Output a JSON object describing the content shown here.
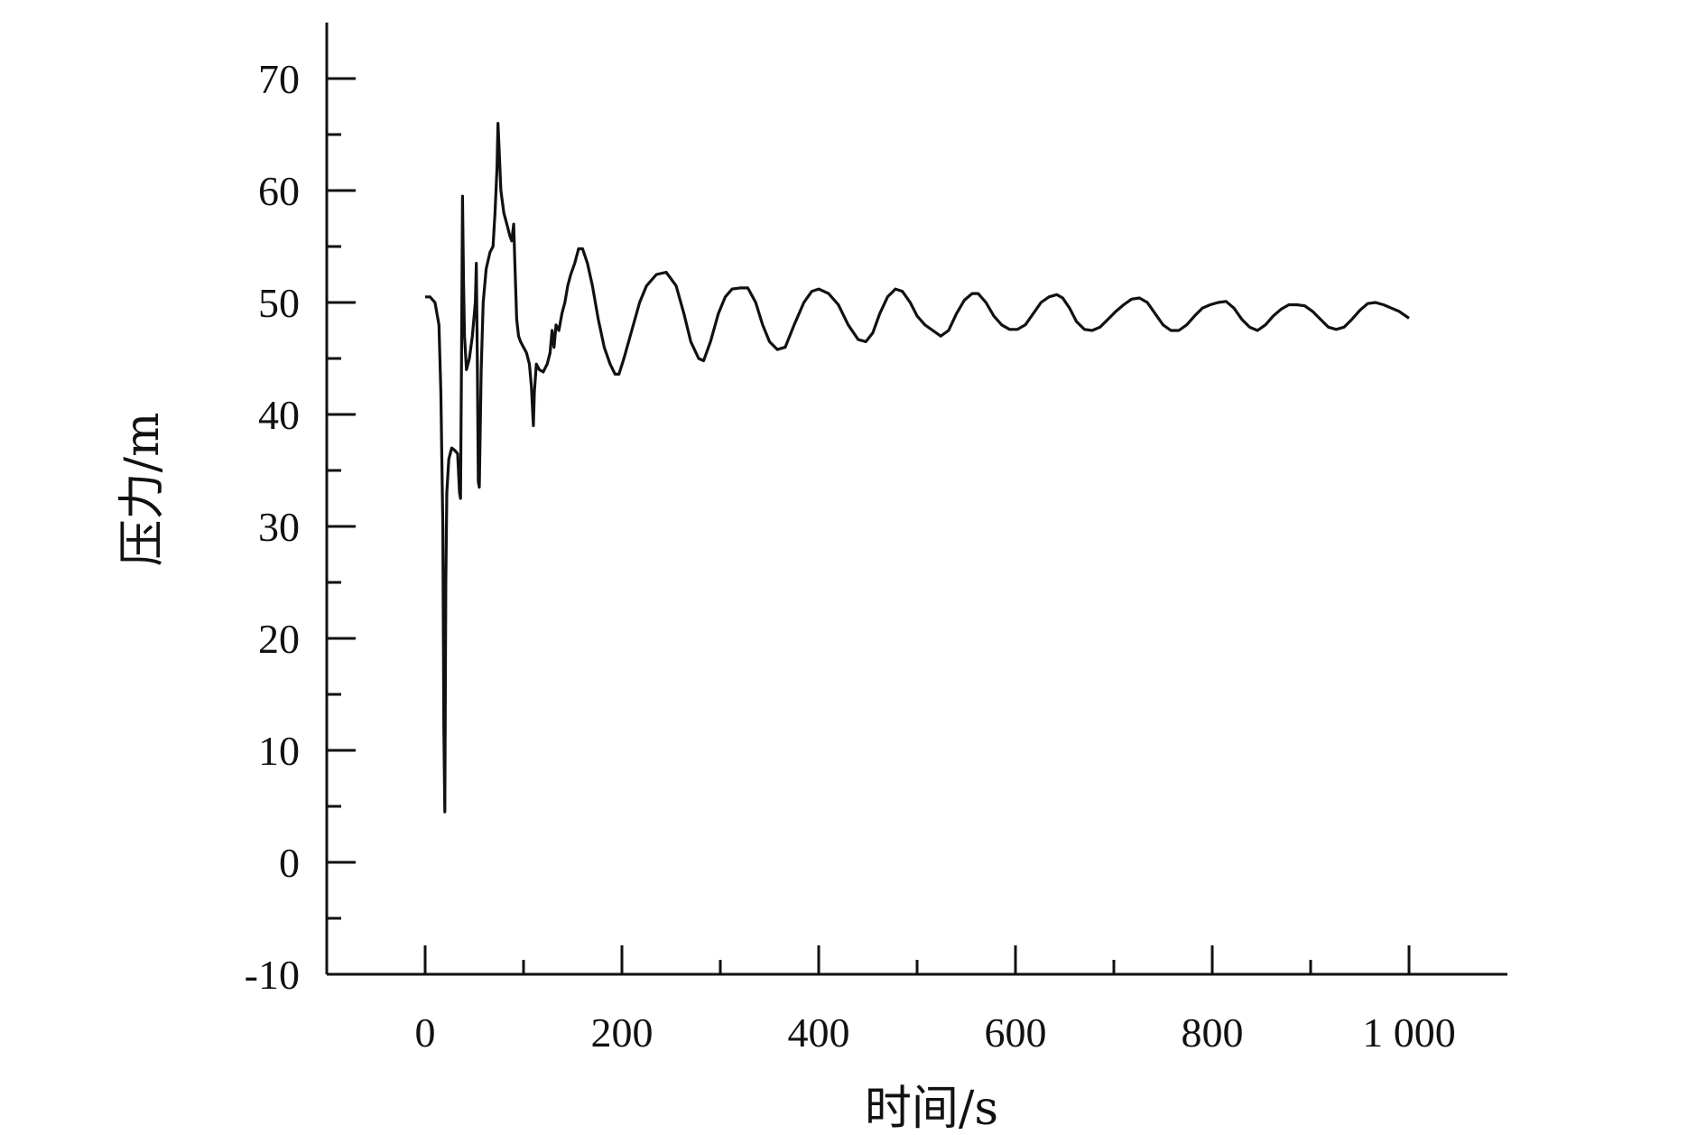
{
  "chart_data": {
    "type": "line",
    "title": "",
    "xlabel": "时间/s",
    "ylabel": "压力/m",
    "xlim": [
      -100,
      1100
    ],
    "ylim": [
      -10,
      75
    ],
    "x_ticks": [
      0,
      200,
      400,
      600,
      800,
      1000
    ],
    "x_tick_labels": [
      "0",
      "200",
      "400",
      "600",
      "800",
      "1 000"
    ],
    "x_minor_ticks": [
      100,
      300,
      500,
      700,
      900
    ],
    "y_ticks": [
      -10,
      0,
      10,
      20,
      30,
      40,
      50,
      60,
      70
    ],
    "y_tick_labels": [
      "-10",
      "0",
      "10",
      "20",
      "30",
      "40",
      "50",
      "60",
      "70"
    ],
    "y_minor_ticks": [
      -5,
      5,
      15,
      25,
      35,
      45,
      55,
      65
    ],
    "grid": false,
    "series": [
      {
        "color": "#111111",
        "points": [
          [
            0,
            50.5
          ],
          [
            5,
            50.5
          ],
          [
            10,
            50.0
          ],
          [
            14,
            48.0
          ],
          [
            16,
            42.0
          ],
          [
            18,
            30.0
          ],
          [
            19,
            12.0
          ],
          [
            20,
            4.5
          ],
          [
            21,
            25.0
          ],
          [
            22,
            33.0
          ],
          [
            24,
            36.0
          ],
          [
            27,
            37.0
          ],
          [
            30,
            36.8
          ],
          [
            33,
            36.5
          ],
          [
            35,
            33.0
          ],
          [
            36,
            32.5
          ],
          [
            37,
            45.0
          ],
          [
            38,
            59.5
          ],
          [
            39,
            52.0
          ],
          [
            40,
            47.0
          ],
          [
            42,
            44.0
          ],
          [
            45,
            45.0
          ],
          [
            48,
            47.0
          ],
          [
            51,
            50.0
          ],
          [
            52,
            53.5
          ],
          [
            53,
            45.0
          ],
          [
            54,
            34.0
          ],
          [
            55,
            33.5
          ],
          [
            57,
            44.0
          ],
          [
            59,
            50.0
          ],
          [
            62,
            53.0
          ],
          [
            66,
            54.5
          ],
          [
            69,
            55.0
          ],
          [
            71,
            58.0
          ],
          [
            73,
            62.0
          ],
          [
            74,
            66.0
          ],
          [
            75,
            64.0
          ],
          [
            77,
            60.0
          ],
          [
            80,
            58.0
          ],
          [
            83,
            57.0
          ],
          [
            86,
            56.0
          ],
          [
            88,
            55.5
          ],
          [
            90,
            57.0
          ],
          [
            91,
            54.0
          ],
          [
            93,
            48.5
          ],
          [
            95,
            47.0
          ],
          [
            97,
            46.5
          ],
          [
            100,
            46.0
          ],
          [
            103,
            45.5
          ],
          [
            106,
            44.5
          ],
          [
            108,
            42.5
          ],
          [
            110,
            39.0
          ],
          [
            111,
            42.0
          ],
          [
            113,
            44.5
          ],
          [
            116,
            44.0
          ],
          [
            120,
            43.8
          ],
          [
            124,
            44.5
          ],
          [
            127,
            45.5
          ],
          [
            129,
            47.5
          ],
          [
            131,
            46.0
          ],
          [
            133,
            48.0
          ],
          [
            136,
            47.5
          ],
          [
            139,
            49.0
          ],
          [
            142,
            50.0
          ],
          [
            145,
            51.5
          ],
          [
            148,
            52.5
          ],
          [
            152,
            53.5
          ],
          [
            156,
            54.8
          ],
          [
            160,
            54.8
          ],
          [
            165,
            53.5
          ],
          [
            170,
            51.5
          ],
          [
            176,
            48.5
          ],
          [
            182,
            46.0
          ],
          [
            188,
            44.5
          ],
          [
            193,
            43.6
          ],
          [
            197,
            43.6
          ],
          [
            202,
            45.0
          ],
          [
            210,
            47.5
          ],
          [
            218,
            50.0
          ],
          [
            225,
            51.5
          ],
          [
            235,
            52.5
          ],
          [
            245,
            52.7
          ],
          [
            255,
            51.5
          ],
          [
            263,
            49.0
          ],
          [
            270,
            46.5
          ],
          [
            278,
            45.0
          ],
          [
            283,
            44.8
          ],
          [
            290,
            46.5
          ],
          [
            298,
            49.0
          ],
          [
            305,
            50.5
          ],
          [
            312,
            51.2
          ],
          [
            320,
            51.3
          ],
          [
            328,
            51.3
          ],
          [
            336,
            50.0
          ],
          [
            343,
            48.0
          ],
          [
            350,
            46.5
          ],
          [
            358,
            45.8
          ],
          [
            366,
            46.0
          ],
          [
            375,
            48.0
          ],
          [
            385,
            50.0
          ],
          [
            393,
            51.0
          ],
          [
            400,
            51.2
          ],
          [
            410,
            50.8
          ],
          [
            420,
            49.8
          ],
          [
            430,
            48.0
          ],
          [
            440,
            46.7
          ],
          [
            448,
            46.5
          ],
          [
            455,
            47.3
          ],
          [
            462,
            49.0
          ],
          [
            470,
            50.5
          ],
          [
            478,
            51.2
          ],
          [
            485,
            51.0
          ],
          [
            493,
            50.0
          ],
          [
            500,
            48.8
          ],
          [
            508,
            48.0
          ],
          [
            516,
            47.5
          ],
          [
            524,
            47.0
          ],
          [
            532,
            47.5
          ],
          [
            540,
            49.0
          ],
          [
            548,
            50.2
          ],
          [
            556,
            50.8
          ],
          [
            562,
            50.8
          ],
          [
            570,
            50.0
          ],
          [
            578,
            48.8
          ],
          [
            586,
            48.0
          ],
          [
            594,
            47.6
          ],
          [
            602,
            47.6
          ],
          [
            610,
            48.0
          ],
          [
            618,
            49.0
          ],
          [
            626,
            50.0
          ],
          [
            634,
            50.5
          ],
          [
            642,
            50.7
          ],
          [
            648,
            50.4
          ],
          [
            655,
            49.5
          ],
          [
            662,
            48.3
          ],
          [
            670,
            47.6
          ],
          [
            678,
            47.5
          ],
          [
            686,
            47.8
          ],
          [
            694,
            48.5
          ],
          [
            702,
            49.2
          ],
          [
            710,
            49.8
          ],
          [
            718,
            50.3
          ],
          [
            726,
            50.4
          ],
          [
            734,
            50.0
          ],
          [
            742,
            49.0
          ],
          [
            750,
            48.0
          ],
          [
            758,
            47.5
          ],
          [
            766,
            47.5
          ],
          [
            774,
            48.0
          ],
          [
            782,
            48.8
          ],
          [
            790,
            49.5
          ],
          [
            798,
            49.8
          ],
          [
            806,
            50.0
          ],
          [
            814,
            50.1
          ],
          [
            822,
            49.5
          ],
          [
            830,
            48.5
          ],
          [
            838,
            47.8
          ],
          [
            846,
            47.5
          ],
          [
            854,
            48.0
          ],
          [
            862,
            48.8
          ],
          [
            870,
            49.4
          ],
          [
            878,
            49.8
          ],
          [
            886,
            49.8
          ],
          [
            894,
            49.7
          ],
          [
            902,
            49.2
          ],
          [
            910,
            48.5
          ],
          [
            918,
            47.8
          ],
          [
            926,
            47.6
          ],
          [
            934,
            47.8
          ],
          [
            942,
            48.5
          ],
          [
            950,
            49.3
          ],
          [
            958,
            49.9
          ],
          [
            966,
            50.0
          ],
          [
            974,
            49.8
          ],
          [
            982,
            49.5
          ],
          [
            990,
            49.2
          ],
          [
            1000,
            48.6
          ]
        ]
      }
    ]
  }
}
